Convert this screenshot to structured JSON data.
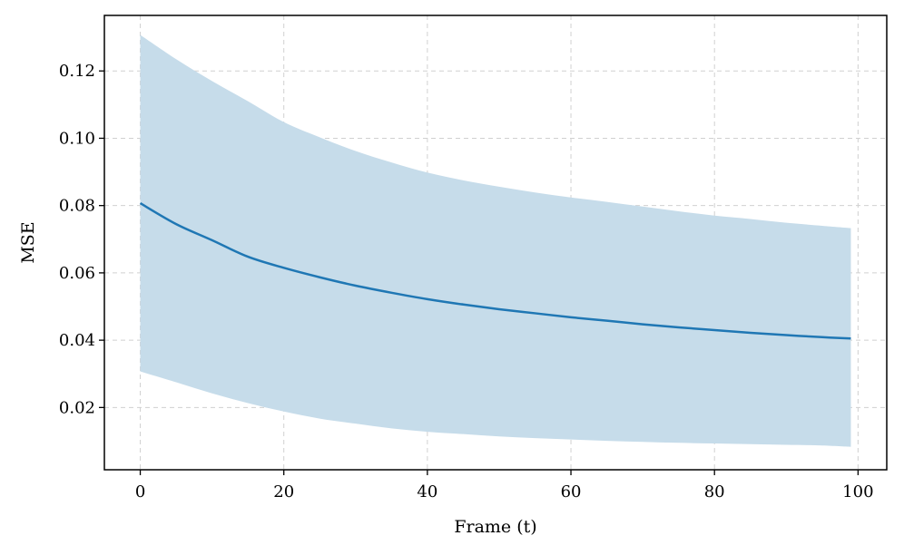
{
  "chart_data": {
    "type": "area",
    "title": "",
    "xlabel": "Frame (t)",
    "ylabel": "MSE",
    "xlim": [
      -5,
      104
    ],
    "ylim": [
      0.0015,
      0.1365
    ],
    "x_ticks": [
      0,
      20,
      40,
      60,
      80,
      100
    ],
    "x_tick_labels": [
      "0",
      "20",
      "40",
      "60",
      "80",
      "100"
    ],
    "y_ticks": [
      0.02,
      0.04,
      0.06,
      0.08,
      0.1,
      0.12
    ],
    "y_tick_labels": [
      "0.02",
      "0.04",
      "0.06",
      "0.08",
      "0.10",
      "0.12"
    ],
    "grid": true,
    "legend": "none",
    "colors": {
      "line": "#1f77b4",
      "band": "#c6dcea",
      "grid": "#d0d0d0"
    },
    "series": [
      {
        "x": [
          0,
          5,
          10,
          15,
          20,
          25,
          30,
          35,
          40,
          45,
          50,
          55,
          60,
          65,
          70,
          75,
          80,
          85,
          90,
          95,
          99
        ],
        "y": [
          0.0807,
          0.0745,
          0.0697,
          0.0648,
          0.0615,
          0.0587,
          0.0562,
          0.0541,
          0.0522,
          0.0506,
          0.0492,
          0.048,
          0.0468,
          0.0458,
          0.0447,
          0.0438,
          0.043,
          0.0422,
          0.0415,
          0.0409,
          0.0405
        ],
        "upper": [
          0.1307,
          0.1235,
          0.117,
          0.111,
          0.1048,
          0.1003,
          0.0962,
          0.0928,
          0.0898,
          0.0875,
          0.0856,
          0.0839,
          0.0824,
          0.0811,
          0.0797,
          0.0783,
          0.077,
          0.076,
          0.0749,
          0.074,
          0.0733
        ],
        "lower": [
          0.0307,
          0.0275,
          0.0242,
          0.0213,
          0.0188,
          0.0167,
          0.0152,
          0.0138,
          0.0128,
          0.0121,
          0.0114,
          0.0109,
          0.0105,
          0.0101,
          0.0098,
          0.0095,
          0.0093,
          0.0091,
          0.0089,
          0.0087,
          0.0083
        ]
      }
    ]
  }
}
